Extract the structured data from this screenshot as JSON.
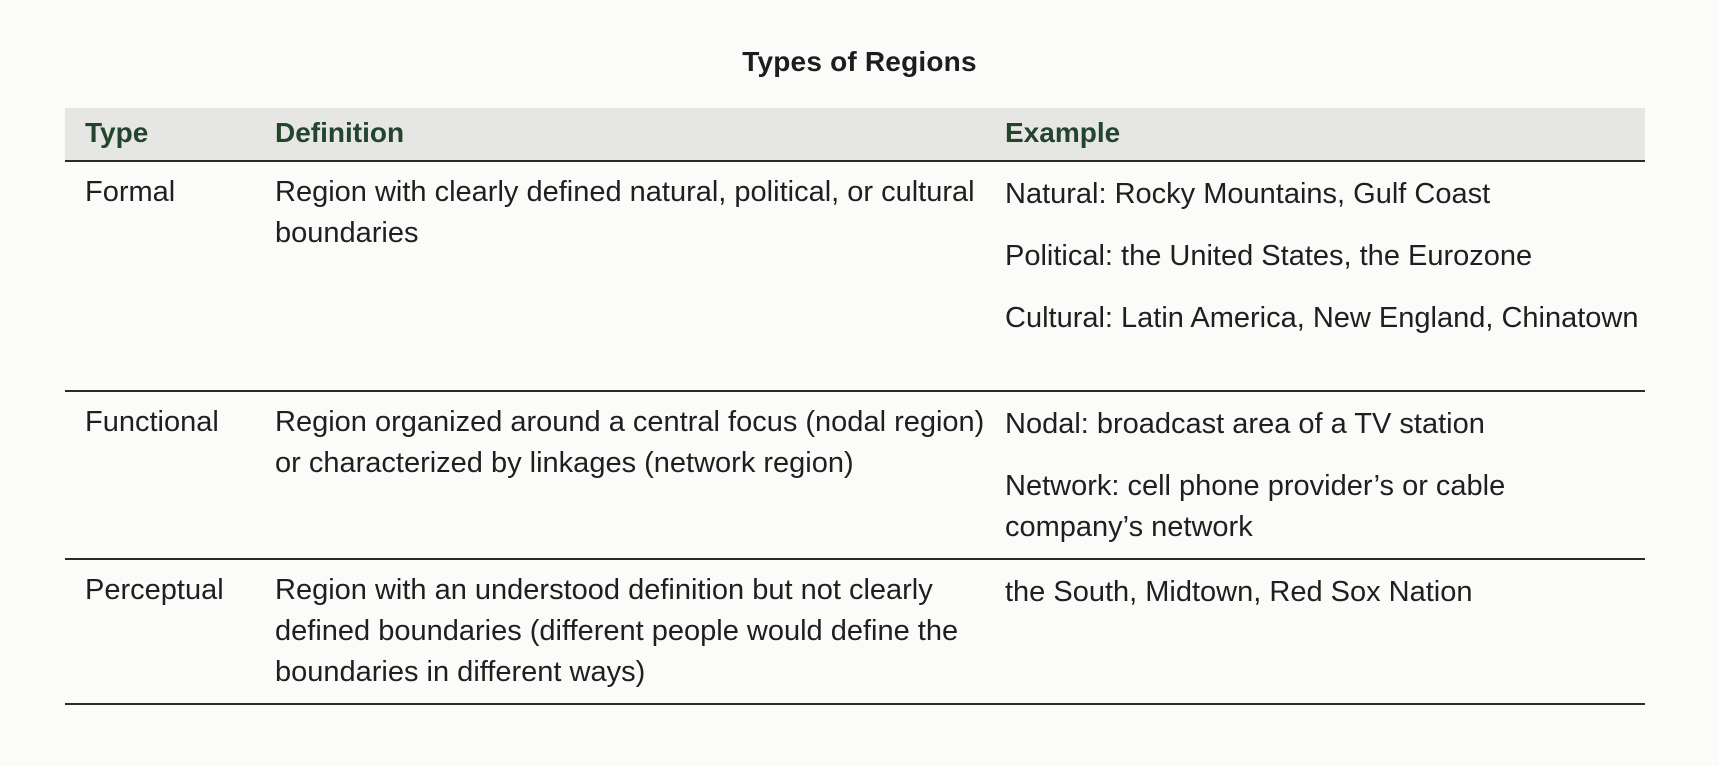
{
  "title": "Types of Regions",
  "columns": {
    "type": "Type",
    "definition": "Definition",
    "example": "Example"
  },
  "rows": [
    {
      "type": "Formal",
      "definition": "Region with clearly defined natural, political, or cultural boundaries",
      "examples": [
        "Natural: Rocky Mountains, Gulf Coast",
        "Political: the United States, the Eurozone",
        "Cultural: Latin America, New England, Chinatown"
      ]
    },
    {
      "type": "Functional",
      "definition": "Region organized around a central focus (nodal region) or characterized by linkages (network region)",
      "examples": [
        "Nodal: broadcast area of a TV station",
        "Network: cell phone provider’s or cable company’s network"
      ]
    },
    {
      "type": "Perceptual",
      "definition": "Region with an understood definition but not clearly defined boundaries (different people would define the boundaries in different ways)",
      "examples": [
        "the South, Midtown, Red Sox Nation"
      ]
    }
  ]
}
